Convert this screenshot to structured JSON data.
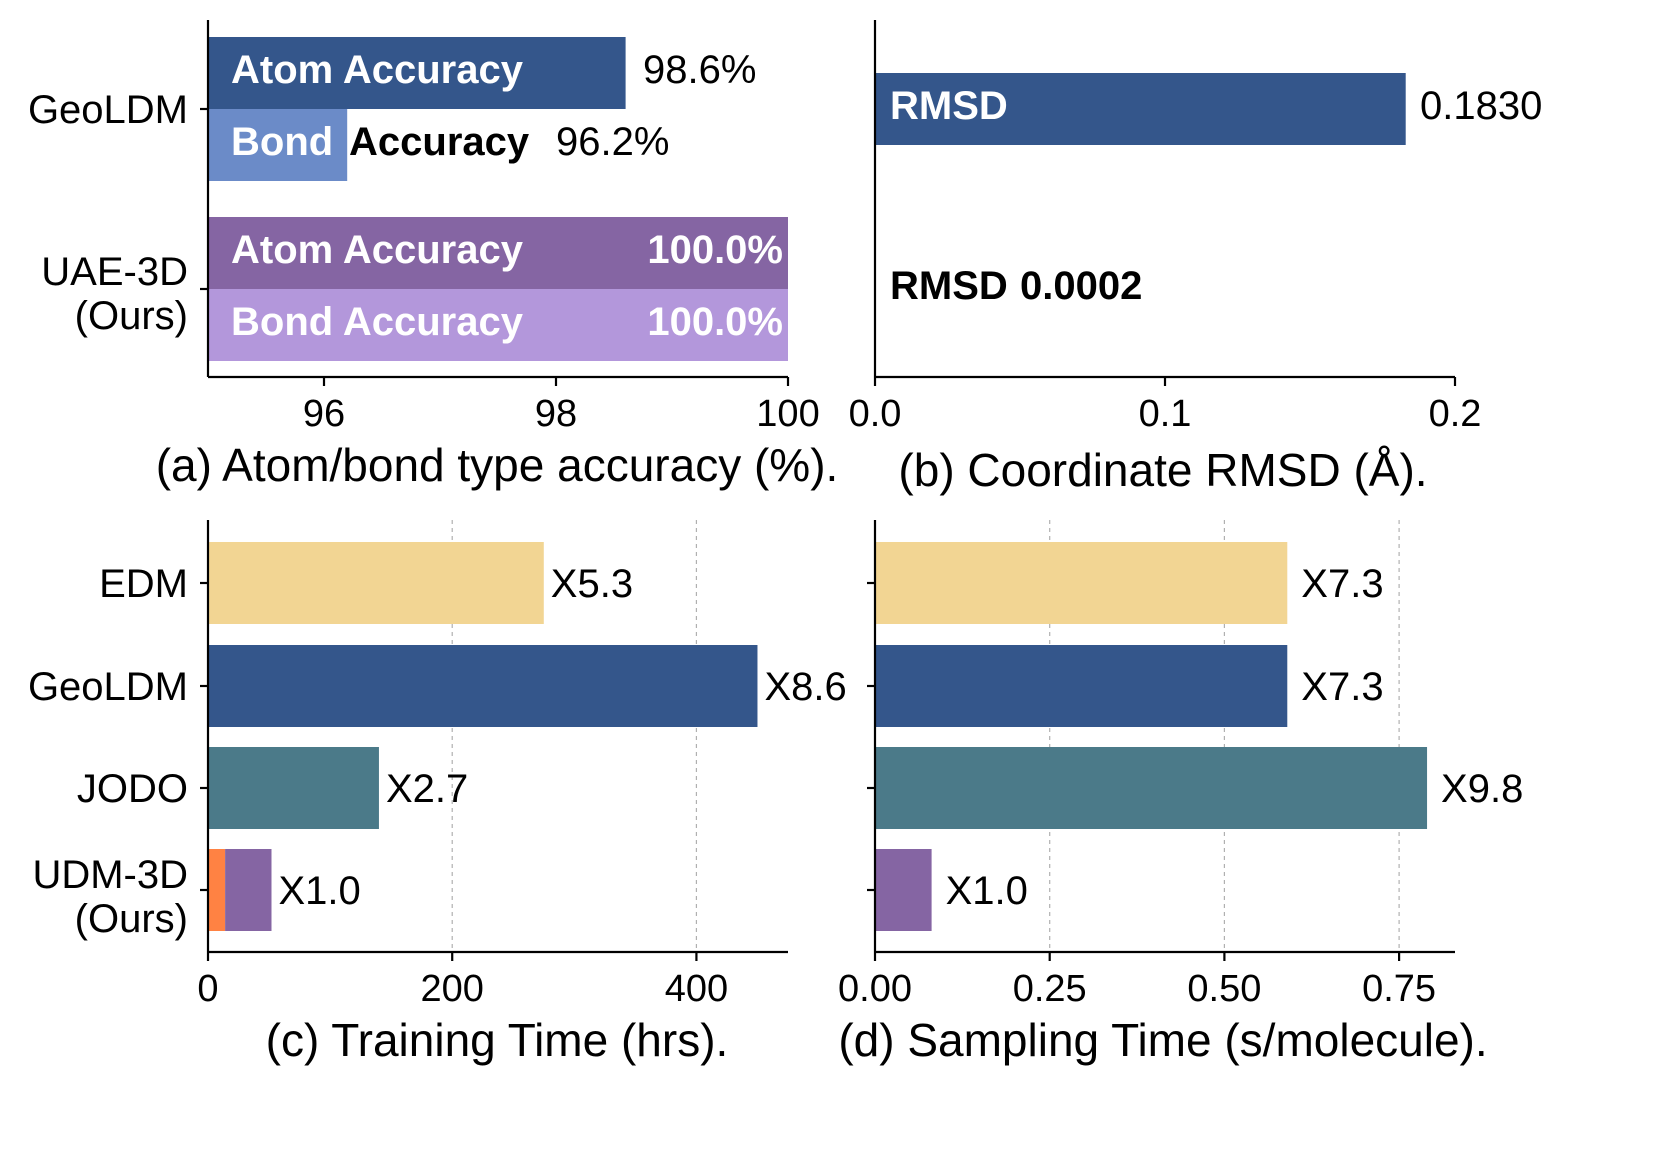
{
  "colors": {
    "geoldm": "#34568B",
    "geoldm_bond": "#6B8BC8",
    "uae_atom": "#8565A3",
    "uae_bond": "#B397DB",
    "edm": "#F2D593",
    "jodo": "#4B7A89",
    "udm_purple": "#8565A3",
    "udm_orange": "#FF8243"
  },
  "chart_data": [
    {
      "id": "a",
      "type": "bar",
      "orientation": "horizontal",
      "caption": "(a) Atom/bond type accuracy (%).",
      "xlim": [
        95,
        100
      ],
      "xticks": [
        "96",
        "98",
        "100"
      ],
      "categories": [
        "GeoLDM",
        "UAE-3D\n(Ours)"
      ],
      "category_lines": [
        [
          "GeoLDM"
        ],
        [
          "UAE-3D",
          "(Ours)"
        ]
      ],
      "series": [
        {
          "model": "GeoLDM",
          "name": "Atom Accuracy",
          "value": 98.6,
          "label": "98.6%"
        },
        {
          "model": "GeoLDM",
          "name": "Bond Accuracy",
          "value": 96.2,
          "label": "96.2%",
          "name_parts": [
            "Bond",
            "Accuracy"
          ]
        },
        {
          "model": "UAE-3D (Ours)",
          "name": "Atom Accuracy",
          "value": 100.0,
          "label": "100.0%"
        },
        {
          "model": "UAE-3D (Ours)",
          "name": "Bond Accuracy",
          "value": 100.0,
          "label": "100.0%"
        }
      ]
    },
    {
      "id": "b",
      "type": "bar",
      "orientation": "horizontal",
      "caption": "(b) Coordinate RMSD (Å).",
      "xlim": [
        0,
        0.2
      ],
      "xticks": [
        "0.0",
        "0.1",
        "0.2"
      ],
      "series": [
        {
          "model": "GeoLDM",
          "name": "RMSD",
          "value": 0.183,
          "label": "0.1830"
        },
        {
          "model": "UAE-3D (Ours)",
          "name": "RMSD",
          "value": 0.0002,
          "label": "0.0002"
        }
      ]
    },
    {
      "id": "c",
      "type": "bar",
      "orientation": "horizontal",
      "caption": "(c) Training Time (hrs).",
      "xlim": [
        0,
        475
      ],
      "xticks": [
        "0",
        "200",
        "400"
      ],
      "grid": true,
      "categories": [
        "EDM",
        "GeoLDM",
        "JODO",
        "UDM-3D\n(Ours)"
      ],
      "category_lines": [
        [
          "EDM"
        ],
        [
          "GeoLDM"
        ],
        [
          "JODO"
        ],
        [
          "UDM-3D",
          "(Ours)"
        ]
      ],
      "values": [
        275,
        450,
        140,
        52
      ],
      "stacked_last": [
        {
          "value": 14,
          "color_key": "udm_orange"
        },
        {
          "value": 38,
          "color_key": "udm_purple"
        }
      ],
      "labels": [
        "X5.3",
        "X8.6",
        "X2.7",
        "X1.0"
      ]
    },
    {
      "id": "d",
      "type": "bar",
      "orientation": "horizontal",
      "caption": "(d) Sampling Time (s/molecule).",
      "xlim": [
        0,
        0.83
      ],
      "xticks": [
        "0.00",
        "0.25",
        "0.50",
        "0.75"
      ],
      "grid": true,
      "categories": [
        "EDM",
        "GeoLDM",
        "JODO",
        "UDM-3D\n(Ours)"
      ],
      "values": [
        0.59,
        0.59,
        0.79,
        0.081
      ],
      "labels": [
        "X7.3",
        "X7.3",
        "X9.8",
        "X1.0"
      ]
    }
  ]
}
